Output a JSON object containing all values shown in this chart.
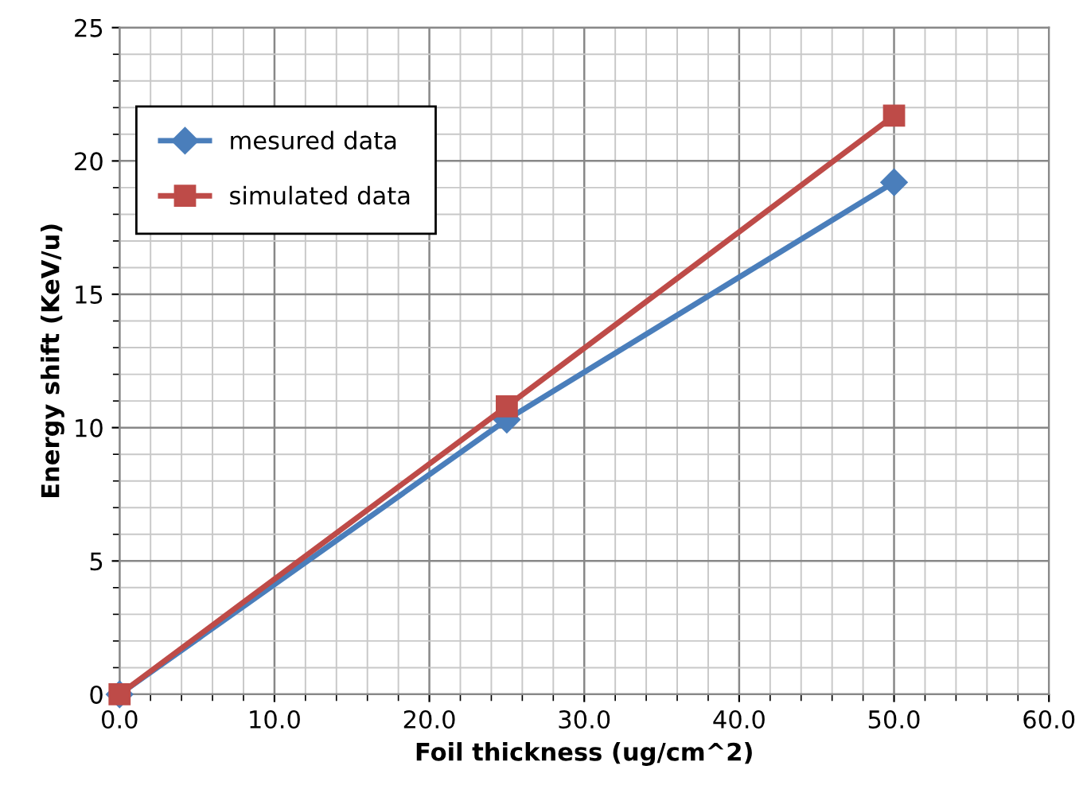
{
  "chart_data": {
    "type": "line",
    "xlabel": "Foil thickness (ug/cm^2)",
    "ylabel": "Energy shift (KeV/u)",
    "xlim": [
      0,
      60
    ],
    "ylim": [
      0,
      25
    ],
    "xticks": [
      {
        "value": 0,
        "label": "0.0"
      },
      {
        "value": 10,
        "label": "10.0"
      },
      {
        "value": 20,
        "label": "20.0"
      },
      {
        "value": 30,
        "label": "30.0"
      },
      {
        "value": 40,
        "label": "40.0"
      },
      {
        "value": 50,
        "label": "50.0"
      },
      {
        "value": 60,
        "label": "60.0"
      }
    ],
    "yticks": [
      0,
      5,
      10,
      15,
      20,
      25
    ],
    "x": [
      0,
      25,
      50
    ],
    "series": [
      {
        "name": "mesured data",
        "color": "#4a7ebb",
        "marker": "diamond",
        "values": [
          0,
          10.3,
          19.2
        ]
      },
      {
        "name": "simulated data",
        "color": "#be4b48",
        "marker": "square",
        "values": [
          0,
          10.8,
          21.7
        ]
      }
    ],
    "grid": true,
    "legend": "top left",
    "line_style": "solid"
  }
}
